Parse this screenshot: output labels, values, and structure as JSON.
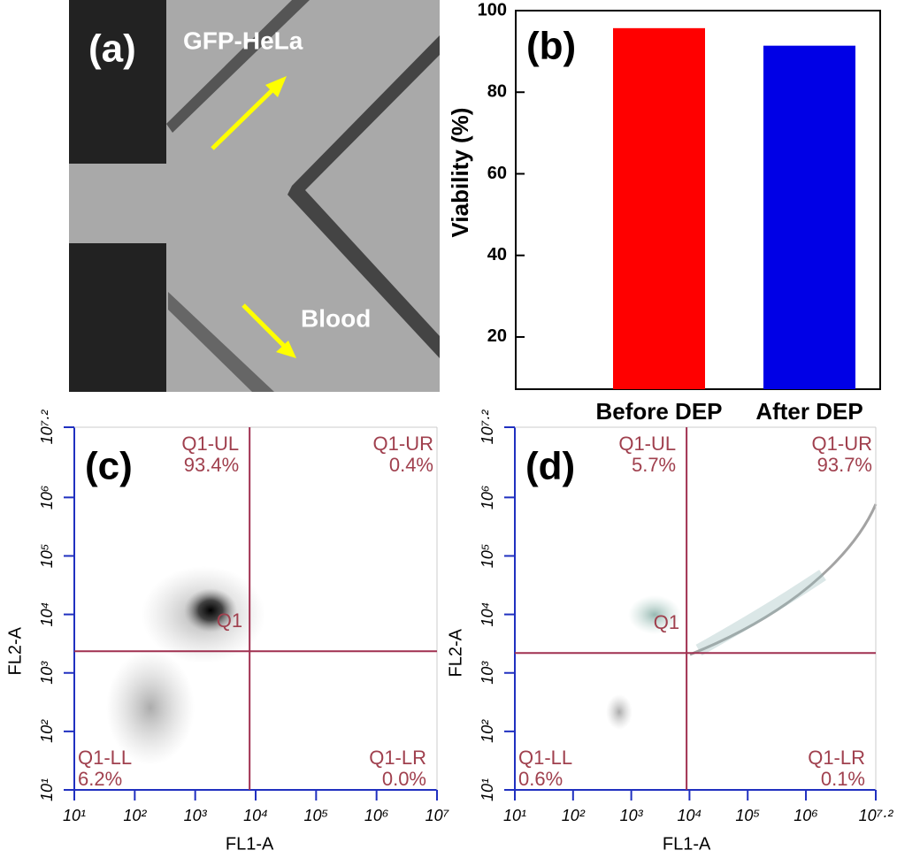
{
  "panel_a": {
    "label": "(a)",
    "annotations": [
      "GFP-HeLa",
      "Blood"
    ]
  },
  "chart_data": [
    {
      "type": "bar",
      "label": "(b)",
      "ylabel": "Viability (%)",
      "categories": [
        "Before DEP",
        "After DEP"
      ],
      "values": [
        95.7,
        91.4
      ],
      "colors": [
        "#ff0000",
        "#0000e6"
      ],
      "ylim": [
        7.2,
        100
      ],
      "yticks": [
        20,
        40,
        60,
        80,
        100
      ]
    },
    {
      "type": "flow",
      "label": "(c)",
      "xlabel": "FL1-A",
      "ylabel": "FL2-A",
      "gate_name": "Q1",
      "xlim": [
        1,
        7
      ],
      "xticks": [
        {
          "value": 1,
          "label": "10¹"
        },
        {
          "value": 2,
          "label": "10²"
        },
        {
          "value": 3,
          "label": "10³"
        },
        {
          "value": 4,
          "label": "10⁴"
        },
        {
          "value": 5,
          "label": "10⁵"
        },
        {
          "value": 6,
          "label": "10⁶"
        },
        {
          "value": 7,
          "label": "10⁷"
        }
      ],
      "ylim": [
        1,
        7.2
      ],
      "yticks": [
        {
          "value": 1,
          "label": "10¹"
        },
        {
          "value": 2,
          "label": "10²"
        },
        {
          "value": 3,
          "label": "10³"
        },
        {
          "value": 4,
          "label": "10⁴"
        },
        {
          "value": 5,
          "label": "10⁵"
        },
        {
          "value": 6,
          "label": "10⁶"
        },
        {
          "value": 7.2,
          "label": "10⁷·²"
        }
      ],
      "gate_x": 3.9,
      "gate_y": 3.37,
      "quadrants": [
        "Q1-UL",
        "Q1-UR",
        "Q1-LL",
        "Q1-LR"
      ],
      "values": [
        93.4,
        0.4,
        6.2,
        0.0
      ],
      "value_labels": [
        "93.4%",
        "0.4%",
        "6.2%",
        "0.0%"
      ]
    },
    {
      "type": "flow",
      "label": "(d)",
      "xlabel": "FL1-A",
      "ylabel": "FL2-A",
      "gate_name": "Q1",
      "xlim": [
        1,
        7.2
      ],
      "xticks": [
        {
          "value": 1,
          "label": "10¹"
        },
        {
          "value": 2,
          "label": "10²"
        },
        {
          "value": 3,
          "label": "10³"
        },
        {
          "value": 4,
          "label": "10⁴"
        },
        {
          "value": 5,
          "label": "10⁵"
        },
        {
          "value": 6,
          "label": "10⁶"
        },
        {
          "value": 7.2,
          "label": "10⁷·²"
        }
      ],
      "ylim": [
        1,
        7.2
      ],
      "yticks": [
        {
          "value": 1,
          "label": "10¹"
        },
        {
          "value": 2,
          "label": "10²"
        },
        {
          "value": 3,
          "label": "10³"
        },
        {
          "value": 4,
          "label": "10⁴"
        },
        {
          "value": 5,
          "label": "10⁵"
        },
        {
          "value": 6,
          "label": "10⁶"
        },
        {
          "value": 7.2,
          "label": "10⁷·²"
        }
      ],
      "gate_x": 3.95,
      "gate_y": 3.34,
      "quadrants": [
        "Q1-UL",
        "Q1-UR",
        "Q1-LL",
        "Q1-LR"
      ],
      "values": [
        5.7,
        93.7,
        0.6,
        0.1
      ],
      "value_labels": [
        "5.7%",
        "93.7%",
        "0.6%",
        "0.1%"
      ]
    }
  ]
}
